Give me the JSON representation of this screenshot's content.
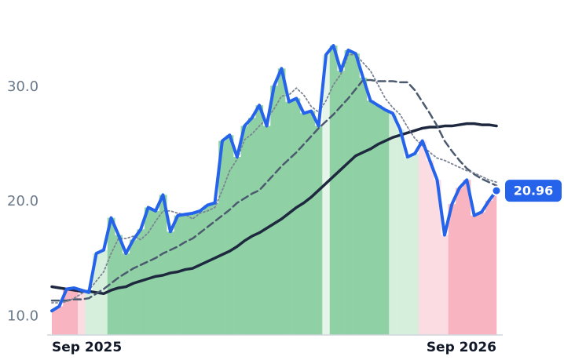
{
  "chart_data": {
    "type": "line",
    "categories": [
      "Sep 2025",
      null,
      null,
      null,
      null,
      null,
      null,
      null,
      null,
      null,
      null,
      null,
      null,
      null,
      null,
      null,
      null,
      null,
      null,
      null,
      null,
      null,
      null,
      null,
      null,
      null,
      null,
      null,
      null,
      null,
      null,
      null,
      null,
      null,
      null,
      null,
      null,
      null,
      null,
      null,
      null,
      null,
      null,
      null,
      null,
      null,
      null,
      null,
      null,
      null,
      null,
      null,
      null,
      null,
      null,
      null,
      null,
      null,
      null,
      null,
      "Sep 2026"
    ],
    "ylim": [
      8.4,
      36.2
    ],
    "yticks": [
      {
        "value": 10,
        "label": "10.0"
      },
      {
        "value": 20,
        "label": "20.0"
      },
      {
        "value": 30,
        "label": "30.0"
      }
    ],
    "grid": false,
    "area_colors": [
      "#f8b4c0",
      "#f8b4c0",
      "#f8b4c0",
      "#f8b4c0",
      "#fcdce3",
      "#d6efdd",
      "#d6efdd",
      "#d6efdd",
      "#8fd1a4",
      "#8fd1a4",
      "#8fd1a4",
      "#8fd1a4",
      "#8fd1a4",
      "#8fd1a4",
      "#8fd1a4",
      "#8fd1a4",
      "#8fd1a4",
      "#8fd1a4",
      "#8fd1a4",
      "#8fd1a4",
      "#8fd1a4",
      "#8fd1a4",
      "#8fd1a4",
      "#8fd1a4",
      "#8fd1a4",
      "#8fd1a4",
      "#8fd1a4",
      "#8fd1a4",
      "#8fd1a4",
      "#8fd1a4",
      "#8fd1a4",
      "#8fd1a4",
      "#8fd1a4",
      "#8fd1a4",
      "#8fd1a4",
      "#8fd1a4",
      "#8fd1a4",
      "#e6f5ea",
      "#8fd1a4",
      "#8fd1a4",
      "#8fd1a4",
      "#8fd1a4",
      "#8fd1a4",
      "#8fd1a4",
      "#8fd1a4",
      "#8fd1a4",
      "#d6efdd",
      "#d6efdd",
      "#d6efdd",
      "#d6efdd",
      "#fcdce3",
      "#fcdce3",
      "#fcdce3",
      "#fcdce3",
      "#f8b4c0",
      "#f8b4c0",
      "#f8b4c0",
      "#f8b4c0",
      "#f8b4c0",
      "#f8b4c0",
      "#f8b4c0"
    ],
    "series": [
      {
        "color": "#1e2940",
        "style": "solid",
        "width": 3.5,
        "values": [
          12.6,
          12.5,
          12.4,
          12.3,
          12.2,
          12.2,
          12.1,
          12.0,
          12.3,
          12.5,
          12.6,
          12.9,
          13.1,
          13.3,
          13.5,
          13.6,
          13.8,
          13.9,
          14.1,
          14.2,
          14.5,
          14.8,
          15.1,
          15.4,
          15.7,
          16.1,
          16.6,
          17.0,
          17.3,
          17.7,
          18.1,
          18.5,
          19.0,
          19.5,
          19.9,
          20.4,
          21.0,
          21.6,
          22.2,
          22.8,
          23.4,
          24.0,
          24.3,
          24.6,
          25.0,
          25.3,
          25.6,
          25.8,
          26.0,
          26.2,
          26.4,
          26.5,
          26.5,
          26.6,
          26.6,
          26.7,
          26.8,
          26.8,
          26.7,
          26.7,
          26.6
        ]
      },
      {
        "color": "#4b5a6e",
        "style": "dashed",
        "width": 2.5,
        "values": [
          11.4,
          11.4,
          11.4,
          11.5,
          11.5,
          11.6,
          12.0,
          12.4,
          12.9,
          13.4,
          13.8,
          14.2,
          14.5,
          14.8,
          15.1,
          15.5,
          15.8,
          16.1,
          16.5,
          16.8,
          17.3,
          17.8,
          18.3,
          18.8,
          19.3,
          19.9,
          20.3,
          20.7,
          21.0,
          21.7,
          22.4,
          23.1,
          23.7,
          24.3,
          25.0,
          25.7,
          26.4,
          27.0,
          27.6,
          28.3,
          29.0,
          29.8,
          30.6,
          30.6,
          30.5,
          30.5,
          30.5,
          30.4,
          30.4,
          29.7,
          28.7,
          27.7,
          26.6,
          25.3,
          24.4,
          23.6,
          22.9,
          22.4,
          22.0,
          21.7,
          21.4
        ]
      },
      {
        "color": "#7b8594",
        "style": "dotted",
        "width": 1.8,
        "values": [
          11.2,
          11.2,
          11.3,
          11.6,
          12.0,
          12.3,
          13.1,
          13.9,
          15.5,
          16.8,
          16.8,
          17.0,
          16.7,
          17.3,
          18.3,
          19.2,
          19.2,
          19.0,
          18.9,
          18.5,
          19.0,
          19.2,
          19.5,
          21.0,
          22.7,
          23.7,
          25.4,
          25.9,
          26.6,
          27.2,
          28.1,
          29.2,
          29.3,
          29.9,
          29.3,
          28.3,
          27.8,
          28.8,
          30.2,
          31.1,
          32.8,
          32.8,
          32.1,
          31.4,
          30.2,
          29.0,
          28.2,
          27.6,
          26.5,
          25.5,
          24.9,
          24.3,
          23.8,
          23.6,
          23.3,
          23.0,
          22.7,
          22.5,
          22.2,
          21.9,
          21.7
        ]
      },
      {
        "color": "#2563eb",
        "style": "solid",
        "width": 4,
        "values": [
          10.5,
          10.9,
          12.4,
          12.5,
          12.3,
          12.1,
          15.5,
          15.8,
          18.6,
          17.1,
          15.5,
          16.7,
          17.6,
          19.5,
          19.2,
          20.6,
          17.4,
          18.8,
          18.9,
          19.0,
          19.2,
          19.7,
          19.9,
          25.3,
          25.8,
          23.9,
          26.6,
          27.3,
          28.4,
          26.6,
          30.1,
          31.6,
          28.7,
          29.0,
          27.7,
          27.9,
          26.6,
          32.8,
          33.6,
          31.4,
          33.2,
          32.9,
          30.8,
          28.8,
          28.4,
          28.0,
          27.7,
          26.3,
          23.9,
          24.2,
          25.3,
          23.6,
          21.9,
          17.1,
          19.8,
          21.2,
          21.9,
          18.8,
          19.1,
          20.1,
          20.96
        ]
      }
    ]
  }
}
